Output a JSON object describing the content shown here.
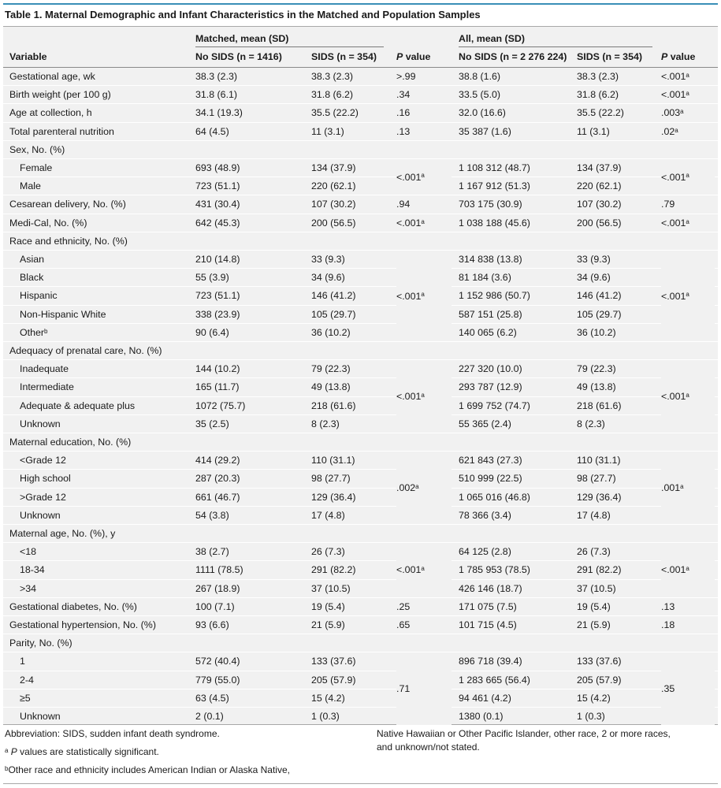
{
  "title": "Table 1. Maternal Demographic and Infant Characteristics in the Matched and Population Samples",
  "header": {
    "group_matched": "Matched, mean (SD)",
    "group_all": "All, mean (SD)",
    "col_variable": "Variable",
    "col_m_nosids": "No SIDS (n = 1416)",
    "col_m_sids": "SIDS (n = 354)",
    "col_a_nosids": "No SIDS (n = 2 276 224)",
    "col_a_sids": "SIDS (n = 354)",
    "col_p_italic": "P",
    "col_p_rest": " value"
  },
  "rows": [
    {
      "label": "Gestational age, wk",
      "indent": false,
      "m1": "38.3 (2.3)",
      "m2": "38.3 (2.3)",
      "mp": ">.99",
      "mp_sup": "",
      "a1": "38.8 (1.6)",
      "a2": "38.3 (2.3)",
      "ap": "<.001",
      "ap_sup": "a"
    },
    {
      "label": "Birth weight (per 100 g)",
      "indent": false,
      "m1": "31.8 (6.1)",
      "m2": "31.8 (6.2)",
      "mp": ".34",
      "mp_sup": "",
      "a1": "33.5 (5.0)",
      "a2": "31.8 (6.2)",
      "ap": "<.001",
      "ap_sup": "a"
    },
    {
      "label": "Age at collection, h",
      "indent": false,
      "m1": "34.1 (19.3)",
      "m2": "35.5 (22.2)",
      "mp": ".16",
      "mp_sup": "",
      "a1": "32.0 (16.6)",
      "a2": "35.5 (22.2)",
      "ap": ".003",
      "ap_sup": "a"
    },
    {
      "label": "Total parenteral nutrition",
      "indent": false,
      "m1": "64 (4.5)",
      "m2": "11 (3.1)",
      "mp": ".13",
      "mp_sup": "",
      "a1": "35 387 (1.6)",
      "a2": "11 (3.1)",
      "ap": ".02",
      "ap_sup": "a"
    },
    {
      "label": "Sex, No. (%)",
      "indent": false,
      "m1": "",
      "m2": "",
      "mp": "",
      "mp_sup": "",
      "a1": "",
      "a2": "",
      "ap": "",
      "ap_sup": ""
    },
    {
      "label": "Female",
      "indent": true,
      "m1": "693 (48.9)",
      "m2": "134 (37.9)",
      "mp": "",
      "mp_sup": "",
      "a1": "1 108 312 (48.7)",
      "a2": "134 (37.9)",
      "ap": "",
      "ap_sup": ""
    },
    {
      "label": "Male",
      "indent": true,
      "m1": "723 (51.1)",
      "m2": "220 (62.1)",
      "mp": "",
      "mp_sup": "",
      "a1": "1 167 912 (51.3)",
      "a2": "220 (62.1)",
      "ap": "",
      "ap_sup": ""
    },
    {
      "label": "Cesarean delivery, No. (%)",
      "indent": false,
      "m1": "431 (30.4)",
      "m2": "107 (30.2)",
      "mp": ".94",
      "mp_sup": "",
      "a1": "703 175 (30.9)",
      "a2": "107 (30.2)",
      "ap": ".79",
      "ap_sup": ""
    },
    {
      "label": "Medi-Cal, No. (%)",
      "indent": false,
      "m1": "642 (45.3)",
      "m2": "200 (56.5)",
      "mp": "<.001",
      "mp_sup": "a",
      "a1": "1 038 188 (45.6)",
      "a2": "200 (56.5)",
      "ap": "<.001",
      "ap_sup": "a"
    },
    {
      "label": "Race and ethnicity, No. (%)",
      "indent": false,
      "m1": "",
      "m2": "",
      "mp": "",
      "mp_sup": "",
      "a1": "",
      "a2": "",
      "ap": "",
      "ap_sup": ""
    },
    {
      "label": "Asian",
      "indent": true,
      "m1": "210 (14.8)",
      "m2": "33 (9.3)",
      "mp": "",
      "mp_sup": "",
      "a1": "314 838 (13.8)",
      "a2": "33 (9.3)",
      "ap": "",
      "ap_sup": ""
    },
    {
      "label": "Black",
      "indent": true,
      "m1": "55 (3.9)",
      "m2": "34 (9.6)",
      "mp": "",
      "mp_sup": "",
      "a1": "81 184 (3.6)",
      "a2": "34 (9.6)",
      "ap": "",
      "ap_sup": ""
    },
    {
      "label": "Hispanic",
      "indent": true,
      "m1": "723 (51.1)",
      "m2": "146 (41.2)",
      "mp": "",
      "mp_sup": "",
      "a1": "1 152 986 (50.7)",
      "a2": "146 (41.2)",
      "ap": "",
      "ap_sup": ""
    },
    {
      "label": "Non-Hispanic White",
      "indent": true,
      "m1": "338 (23.9)",
      "m2": "105 (29.7)",
      "mp": "",
      "mp_sup": "",
      "a1": "587 151 (25.8)",
      "a2": "105 (29.7)",
      "ap": "",
      "ap_sup": ""
    },
    {
      "label": "Other",
      "label_sup": "b",
      "indent": true,
      "m1": "90 (6.4)",
      "m2": "36 (10.2)",
      "mp": "",
      "mp_sup": "",
      "a1": "140 065 (6.2)",
      "a2": "36 (10.2)",
      "ap": "",
      "ap_sup": ""
    },
    {
      "label": "Adequacy of prenatal care, No. (%)",
      "indent": false,
      "m1": "",
      "m2": "",
      "mp": "",
      "mp_sup": "",
      "a1": "",
      "a2": "",
      "ap": "",
      "ap_sup": ""
    },
    {
      "label": "Inadequate",
      "indent": true,
      "m1": "144 (10.2)",
      "m2": "79 (22.3)",
      "mp": "",
      "mp_sup": "",
      "a1": "227 320 (10.0)",
      "a2": "79 (22.3)",
      "ap": "",
      "ap_sup": ""
    },
    {
      "label": "Intermediate",
      "indent": true,
      "m1": "165 (11.7)",
      "m2": "49 (13.8)",
      "mp": "",
      "mp_sup": "",
      "a1": "293 787 (12.9)",
      "a2": "49 (13.8)",
      "ap": "",
      "ap_sup": ""
    },
    {
      "label": "Adequate & adequate plus",
      "indent": true,
      "m1": "1072 (75.7)",
      "m2": "218 (61.6)",
      "mp": "",
      "mp_sup": "",
      "a1": "1 699 752 (74.7)",
      "a2": "218 (61.6)",
      "ap": "",
      "ap_sup": ""
    },
    {
      "label": "Unknown",
      "indent": true,
      "m1": "35 (2.5)",
      "m2": "8 (2.3)",
      "mp": "",
      "mp_sup": "",
      "a1": "55 365 (2.4)",
      "a2": "8 (2.3)",
      "ap": "",
      "ap_sup": ""
    },
    {
      "label": "Maternal education, No. (%)",
      "indent": false,
      "m1": "",
      "m2": "",
      "mp": "",
      "mp_sup": "",
      "a1": "",
      "a2": "",
      "ap": "",
      "ap_sup": ""
    },
    {
      "label": "<Grade 12",
      "indent": true,
      "m1": "414 (29.2)",
      "m2": "110 (31.1)",
      "mp": "",
      "mp_sup": "",
      "a1": "621 843 (27.3)",
      "a2": "110 (31.1)",
      "ap": "",
      "ap_sup": ""
    },
    {
      "label": "High school",
      "indent": true,
      "m1": "287 (20.3)",
      "m2": "98 (27.7)",
      "mp": "",
      "mp_sup": "",
      "a1": "510 999 (22.5)",
      "a2": "98 (27.7)",
      "ap": "",
      "ap_sup": ""
    },
    {
      "label": ">Grade 12",
      "indent": true,
      "m1": "661 (46.7)",
      "m2": "129 (36.4)",
      "mp": "",
      "mp_sup": "",
      "a1": "1 065 016 (46.8)",
      "a2": "129 (36.4)",
      "ap": "",
      "ap_sup": ""
    },
    {
      "label": "Unknown",
      "indent": true,
      "m1": "54 (3.8)",
      "m2": "17 (4.8)",
      "mp": "",
      "mp_sup": "",
      "a1": "78 366 (3.4)",
      "a2": "17 (4.8)",
      "ap": "",
      "ap_sup": ""
    },
    {
      "label": "Maternal age, No. (%), y",
      "indent": false,
      "m1": "",
      "m2": "",
      "mp": "",
      "mp_sup": "",
      "a1": "",
      "a2": "",
      "ap": "",
      "ap_sup": ""
    },
    {
      "label": "<18",
      "indent": true,
      "m1": "38 (2.7)",
      "m2": "26 (7.3)",
      "mp": "",
      "mp_sup": "",
      "a1": "64 125 (2.8)",
      "a2": "26 (7.3)",
      "ap": "",
      "ap_sup": ""
    },
    {
      "label": "18-34",
      "indent": true,
      "m1": "1111 (78.5)",
      "m2": "291 (82.2)",
      "mp": "",
      "mp_sup": "",
      "a1": "1 785 953 (78.5)",
      "a2": "291 (82.2)",
      "ap": "",
      "ap_sup": ""
    },
    {
      "label": ">34",
      "indent": true,
      "m1": "267 (18.9)",
      "m2": "37 (10.5)",
      "mp": "",
      "mp_sup": "",
      "a1": "426 146 (18.7)",
      "a2": "37 (10.5)",
      "ap": "",
      "ap_sup": ""
    },
    {
      "label": "Gestational diabetes, No. (%)",
      "indent": false,
      "m1": "100 (7.1)",
      "m2": "19 (5.4)",
      "mp": ".25",
      "mp_sup": "",
      "a1": "171 075 (7.5)",
      "a2": "19 (5.4)",
      "ap": ".13",
      "ap_sup": ""
    },
    {
      "label": "Gestational hypertension, No. (%)",
      "indent": false,
      "m1": "93 (6.6)",
      "m2": "21 (5.9)",
      "mp": ".65",
      "mp_sup": "",
      "a1": "101 715 (4.5)",
      "a2": "21 (5.9)",
      "ap": ".18",
      "ap_sup": ""
    },
    {
      "label": "Parity, No. (%)",
      "indent": false,
      "m1": "",
      "m2": "",
      "mp": "",
      "mp_sup": "",
      "a1": "",
      "a2": "",
      "ap": "",
      "ap_sup": ""
    },
    {
      "label": "1",
      "indent": true,
      "m1": "572 (40.4)",
      "m2": "133 (37.6)",
      "mp": "",
      "mp_sup": "",
      "a1": "896 718 (39.4)",
      "a2": "133 (37.6)",
      "ap": "",
      "ap_sup": ""
    },
    {
      "label": "2-4",
      "indent": true,
      "m1": "779 (55.0)",
      "m2": "205 (57.9)",
      "mp": "",
      "mp_sup": "",
      "a1": "1 283 665 (56.4)",
      "a2": "205 (57.9)",
      "ap": "",
      "ap_sup": ""
    },
    {
      "label": "≥5",
      "indent": true,
      "m1": "63 (4.5)",
      "m2": "15 (4.2)",
      "mp": "",
      "mp_sup": "",
      "a1": "94 461 (4.2)",
      "a2": "15 (4.2)",
      "ap": "",
      "ap_sup": ""
    },
    {
      "label": "Unknown",
      "indent": true,
      "m1": "2 (0.1)",
      "m2": "1 (0.3)",
      "mp": "",
      "mp_sup": "",
      "a1": "1380 (0.1)",
      "a2": "1 (0.3)",
      "ap": "",
      "ap_sup": ""
    }
  ],
  "spans": [
    {
      "rows": [
        5,
        6
      ],
      "m": "<.001",
      "m_sup": "a",
      "a": "<.001",
      "a_sup": "a"
    },
    {
      "rows": [
        10,
        14
      ],
      "m": "<.001",
      "m_sup": "a",
      "a": "<.001",
      "a_sup": "a"
    },
    {
      "rows": [
        16,
        19
      ],
      "m": "<.001",
      "m_sup": "a",
      "a": "<.001",
      "a_sup": "a"
    },
    {
      "rows": [
        21,
        24
      ],
      "m": ".002",
      "m_sup": "a",
      "a": ".001",
      "a_sup": "a"
    },
    {
      "rows": [
        26,
        28
      ],
      "m": "<.001",
      "m_sup": "a",
      "a": "<.001",
      "a_sup": "a"
    },
    {
      "rows": [
        32,
        35
      ],
      "m": ".71",
      "m_sup": "",
      "a": ".35",
      "a_sup": ""
    }
  ],
  "footnotes": {
    "abbreviation": "Abbreviation: SIDS, sudden infant death syndrome.",
    "a_sup": "a",
    "a_italic": "P",
    "a_text": " values are statistically significant.",
    "b_sup": "b",
    "b_text": "Other race and ethnicity includes American Indian or Alaska Native,",
    "b_cont_1": "Native Hawaiian or Other Pacific Islander, other race, 2 or more races,",
    "b_cont_2": "and unknown/not stated."
  },
  "colors": {
    "accent_line": "#3a8fb7",
    "table_bg": "#f1f1f1"
  }
}
